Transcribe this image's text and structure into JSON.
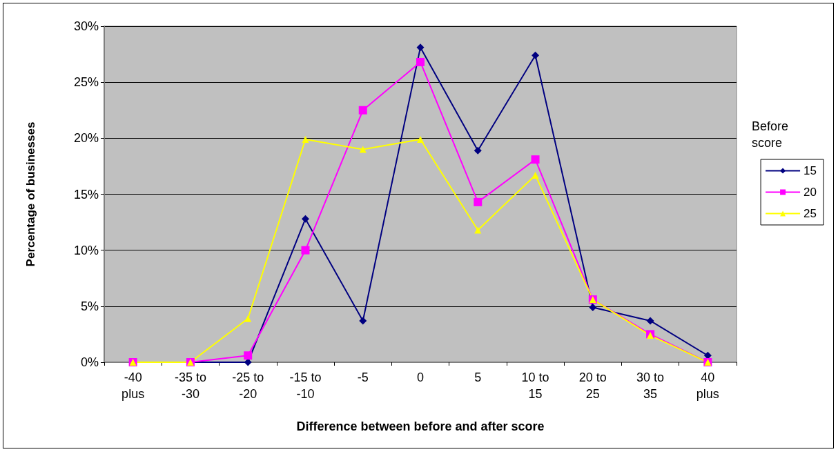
{
  "chart_data": {
    "type": "line",
    "xlabel": "Difference between before and after score",
    "ylabel": "Percentage of businesses",
    "legend_title": "Before score",
    "categories": [
      "-40 plus",
      "-35 to -30",
      "-25 to -20",
      "-15 to -10",
      "-5",
      "0",
      "5",
      "10 to 15",
      "20 to 25",
      "30 to 35",
      "40 plus"
    ],
    "series": [
      {
        "name": "15",
        "color": "#000080",
        "marker": "diamond",
        "values": [
          0,
          0,
          0,
          12.8,
          3.7,
          28.1,
          18.9,
          27.4,
          4.9,
          3.7,
          0.6
        ]
      },
      {
        "name": "20",
        "color": "#ff00ff",
        "marker": "square",
        "values": [
          0,
          0,
          0.6,
          10.0,
          22.5,
          26.8,
          14.3,
          18.1,
          5.6,
          2.5,
          0
        ]
      },
      {
        "name": "25",
        "color": "#ffff00",
        "marker": "triangle",
        "values": [
          0,
          0,
          3.9,
          19.9,
          19.0,
          19.9,
          11.8,
          16.7,
          5.6,
          2.4,
          0
        ]
      }
    ],
    "ylim": [
      0,
      30
    ],
    "yticks": [
      {
        "value": 0,
        "label": "0%"
      },
      {
        "value": 5,
        "label": "5%"
      },
      {
        "value": 10,
        "label": "10%"
      },
      {
        "value": 15,
        "label": "15%"
      },
      {
        "value": 20,
        "label": "20%"
      },
      {
        "value": 25,
        "label": "25%"
      },
      {
        "value": 30,
        "label": "30%"
      }
    ],
    "grid": "y",
    "legend": "right",
    "line_style": "solid"
  }
}
